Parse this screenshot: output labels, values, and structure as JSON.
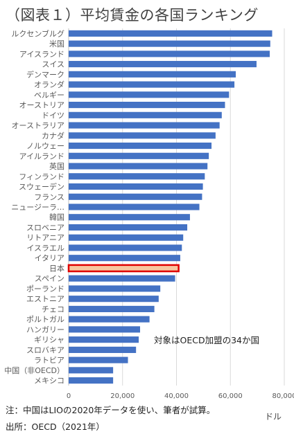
{
  "title": "（図表１）平均賃金の各国ランキング",
  "chart_data": {
    "type": "bar",
    "orientation": "horizontal",
    "categories": [
      "ルクセンブルグ",
      "米国",
      "アイスランド",
      "スイス",
      "デンマーク",
      "オランダ",
      "ベルギー",
      "オーストリア",
      "ドイツ",
      "オーストラリア",
      "カナダ",
      "ノルウェー",
      "アイルランド",
      "英国",
      "フィンランド",
      "スウェーデン",
      "フランス",
      "ニュージーラ…",
      "韓国",
      "スロベニア",
      "リトアニア",
      "イスラエル",
      "イタリア",
      "日本",
      "スペイン",
      "ポーランド",
      "エストニア",
      "チェコ",
      "ポルトガル",
      "ハンガリー",
      "ギリシャ",
      "スロバキア",
      "ラトビア",
      "中国（非OECD）",
      "メキシコ"
    ],
    "values": [
      75500,
      74800,
      74600,
      69700,
      62000,
      61500,
      59500,
      58000,
      56800,
      56000,
      54500,
      53000,
      52000,
      51500,
      50500,
      49800,
      49500,
      48500,
      45000,
      44000,
      42500,
      42000,
      41400,
      40800,
      39500,
      34000,
      33400,
      31800,
      30000,
      26500,
      26000,
      25000,
      22000,
      16500,
      16500
    ],
    "highlight": "日本",
    "bar_color": "#4472c4",
    "highlight_fill": "#f7c7a0",
    "highlight_stroke": "#e00000",
    "xlim": [
      0,
      80000
    ],
    "xticks": [
      "0",
      "20,000",
      "40,000",
      "60,000",
      "80,000"
    ],
    "xlabel": "ドル",
    "annotation": "対象はOECD加盟の34か国",
    "grid": true
  },
  "notes": {
    "note1": "注：中国はLIOの2020年データを使い、筆者が試算。",
    "note2": "出所：OECD（2021年）"
  }
}
